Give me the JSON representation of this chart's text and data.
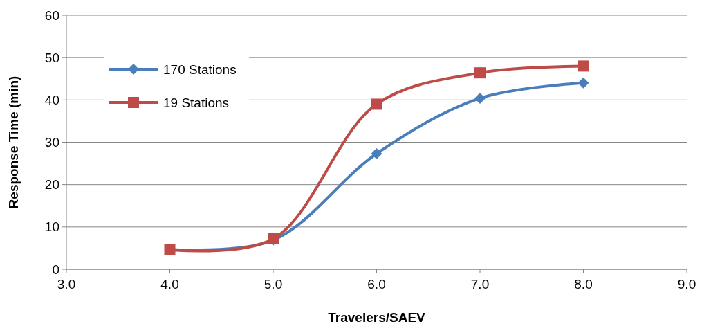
{
  "chart_data": {
    "type": "line",
    "xlabel": "Travelers/SAEV",
    "ylabel": "Response Time (min)",
    "x": [
      4.0,
      5.0,
      6.0,
      7.0,
      8.0
    ],
    "series": [
      {
        "name": "170 Stations",
        "color": "#4a7ebb",
        "marker": "diamond",
        "values": [
          4.7,
          6.9,
          27.3,
          40.4,
          44.0
        ]
      },
      {
        "name": "19 Stations",
        "color": "#be4b48",
        "marker": "square",
        "values": [
          4.6,
          7.2,
          39.0,
          46.4,
          48.0
        ]
      }
    ],
    "xlim": [
      3.0,
      9.0
    ],
    "xticks": [
      {
        "value": 3,
        "label": "3.0"
      },
      {
        "value": 4,
        "label": "4.0"
      },
      {
        "value": 5,
        "label": "5.0"
      },
      {
        "value": 6,
        "label": "6.0"
      },
      {
        "value": 7,
        "label": "7.0"
      },
      {
        "value": 8,
        "label": "8.0"
      },
      {
        "value": 9,
        "label": "9.0"
      }
    ],
    "ylim": [
      0,
      60
    ],
    "yticks": [
      0,
      10,
      20,
      30,
      40,
      50,
      60
    ],
    "grid": "y",
    "legend": "top left",
    "line_style": "solid"
  }
}
